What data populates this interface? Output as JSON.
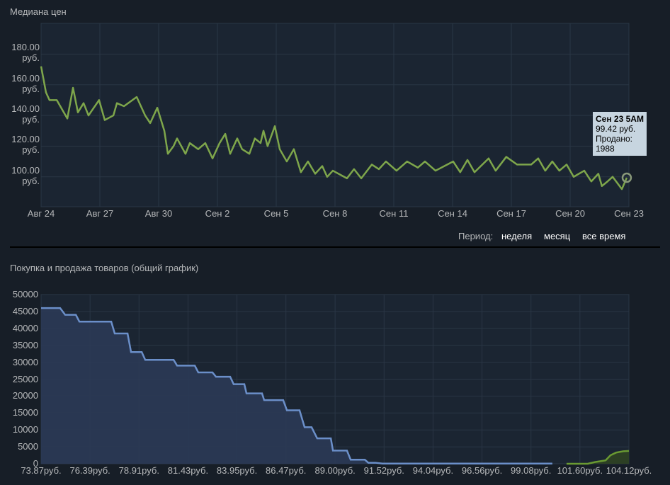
{
  "chart_data": [
    {
      "type": "line",
      "title": "Медиана цен",
      "color": "#7ea64b",
      "grid": true,
      "x": [
        0,
        0.25,
        0.43,
        0.8,
        1.34,
        1.63,
        1.88,
        2.17,
        2.42,
        2.96,
        3.25,
        3.69,
        3.87,
        4.23,
        4.88,
        5.31,
        5.57,
        5.93,
        6.29,
        6.47,
        6.76,
        6.94,
        7.37,
        7.59,
        8.02,
        8.38,
        8.75,
        9.11,
        9.4,
        9.65,
        10.01,
        10.26,
        10.63,
        10.91,
        11.2,
        11.35,
        11.56,
        11.93,
        12.18,
        12.54,
        12.9,
        13.26,
        13.62,
        13.99,
        14.35,
        14.6,
        14.89,
        15.61,
        15.97,
        16.34,
        16.88,
        17.24,
        17.6,
        18.14,
        18.68,
        19.23,
        19.59,
        20.13,
        21.03,
        21.39,
        21.76,
        22.12,
        22.84,
        23.2,
        23.74,
        24.29,
        25.01,
        25.37,
        25.73,
        26.09,
        26.45,
        26.82,
        27.18,
        27.72,
        28.08,
        28.44,
        28.62,
        28.91,
        29.17,
        29.64,
        29.89
      ],
      "values": [
        172,
        155,
        150,
        150,
        138,
        158,
        142,
        148,
        140,
        150,
        137,
        140,
        148,
        146,
        152,
        140,
        135,
        145,
        130,
        115,
        120,
        125,
        115,
        122,
        118,
        122,
        112,
        122,
        128,
        115,
        125,
        118,
        115,
        125,
        122,
        130,
        120,
        133,
        118,
        110,
        118,
        103,
        110,
        102,
        107,
        100,
        104,
        99,
        105,
        99,
        108,
        105,
        110,
        104,
        110,
        106,
        110,
        104,
        110,
        103,
        111,
        103,
        112,
        104,
        113,
        108,
        108,
        112,
        104,
        110,
        104,
        108,
        100,
        104,
        97,
        102,
        94,
        97,
        100,
        92,
        99.42
      ],
      "xlim": [
        0,
        30
      ],
      "xticks": [
        {
          "value": 0,
          "label": "Авг 24"
        },
        {
          "value": 3,
          "label": "Авг 27"
        },
        {
          "value": 6,
          "label": "Авг 30"
        },
        {
          "value": 9,
          "label": "Сен 2"
        },
        {
          "value": 12,
          "label": "Сен 5"
        },
        {
          "value": 15,
          "label": "Сен 8"
        },
        {
          "value": 18,
          "label": "Сен 11"
        },
        {
          "value": 21,
          "label": "Сен 14"
        },
        {
          "value": 24,
          "label": "Сен 17"
        },
        {
          "value": 27,
          "label": "Сен 20"
        },
        {
          "value": 30,
          "label": "Сен 23"
        }
      ],
      "ylim": [
        80.5,
        200
      ],
      "yticks": [
        {
          "value": 100,
          "label": "100.00 руб."
        },
        {
          "value": 120,
          "label": "120.00 руб."
        },
        {
          "value": 140,
          "label": "140.00 руб."
        },
        {
          "value": 160,
          "label": "160.00 руб."
        },
        {
          "value": 180,
          "label": "180.00 руб."
        }
      ],
      "tooltip": {
        "date": "Сен 23 5AM",
        "price": "99.42 руб.",
        "sold_label": "Продано:",
        "sold": "1988"
      },
      "period": {
        "label": "Период:",
        "options": [
          "неделя",
          "месяц",
          "все время"
        ]
      }
    },
    {
      "type": "area",
      "title": "Покупка и продажа товаров (общий график)",
      "grid": true,
      "series": [
        {
          "color": "#6b8fc9",
          "fill": "#2b3a55",
          "x": [
            73.87,
            74.85,
            75.11,
            75.66,
            75.84,
            77.48,
            77.66,
            78.32,
            78.5,
            79.05,
            79.23,
            80.69,
            80.87,
            81.78,
            81.96,
            82.69,
            82.87,
            83.6,
            83.78,
            84.33,
            84.44,
            85.24,
            85.35,
            86.33,
            86.52,
            87.17,
            87.43,
            87.79,
            88.08,
            88.78,
            88.89,
            89.61,
            89.8,
            90.53,
            90.71,
            91.07,
            91.44,
            100.18
          ],
          "values": [
            46000,
            46000,
            44000,
            44000,
            42000,
            42000,
            38500,
            38500,
            33000,
            33000,
            30700,
            30700,
            29000,
            29000,
            27000,
            27000,
            25700,
            25700,
            23500,
            23500,
            20800,
            20800,
            18800,
            18800,
            15800,
            15800,
            10800,
            10800,
            7500,
            7500,
            3900,
            3900,
            1200,
            1200,
            300,
            300,
            50,
            50
          ]
        },
        {
          "color": "#6a9a32",
          "fill": "#2f4222",
          "x": [
            100.91,
            102.0,
            102.37,
            102.92,
            103.17,
            103.46,
            103.83,
            104.12
          ],
          "values": [
            0,
            0,
            500,
            1000,
            2500,
            3300,
            3700,
            3800
          ]
        }
      ],
      "xlim": [
        73.87,
        104.12
      ],
      "xticks": [
        {
          "value": 73.87,
          "label": "73.87руб."
        },
        {
          "value": 76.39,
          "label": "76.39руб."
        },
        {
          "value": 78.91,
          "label": "78.91руб."
        },
        {
          "value": 81.43,
          "label": "81.43руб."
        },
        {
          "value": 83.95,
          "label": "83.95руб."
        },
        {
          "value": 86.47,
          "label": "86.47руб."
        },
        {
          "value": 89.0,
          "label": "89.00руб."
        },
        {
          "value": 91.52,
          "label": "91.52руб."
        },
        {
          "value": 94.04,
          "label": "94.04руб."
        },
        {
          "value": 96.56,
          "label": "96.56руб."
        },
        {
          "value": 99.08,
          "label": "99.08руб."
        },
        {
          "value": 101.6,
          "label": "101.60руб."
        },
        {
          "value": 104.12,
          "label": "104.12руб."
        }
      ],
      "ylim": [
        0,
        50000
      ],
      "yticks": [
        0,
        5000,
        10000,
        15000,
        20000,
        25000,
        30000,
        35000,
        40000,
        45000,
        50000
      ]
    }
  ]
}
